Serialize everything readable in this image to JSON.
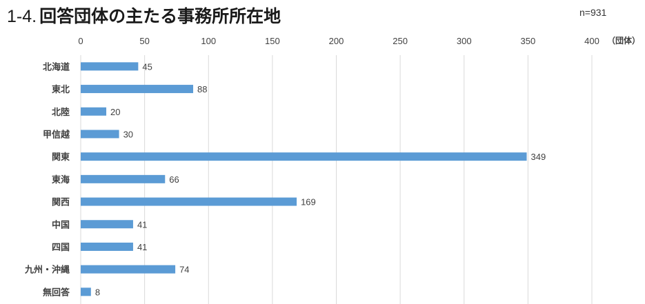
{
  "title": {
    "prefix": "1-4.",
    "text": "回答団体の主たる事務所所在地"
  },
  "sample_size": "n=931",
  "chart_data": {
    "type": "bar",
    "orientation": "horizontal",
    "title": "1-4. 回答団体の主たる事務所所在地",
    "unit_label": "（団体）",
    "xlim": [
      0,
      400
    ],
    "xticks": [
      0,
      50,
      100,
      150,
      200,
      250,
      300,
      350,
      400
    ],
    "categories": [
      "北海道",
      "東北",
      "北陸",
      "甲信越",
      "関東",
      "東海",
      "関西",
      "中国",
      "四国",
      "九州・沖縄",
      "無回答"
    ],
    "values": [
      45,
      88,
      20,
      30,
      349,
      66,
      169,
      41,
      41,
      74,
      8
    ],
    "bar_color": "#5b9bd5",
    "grid": true,
    "legend": "none"
  }
}
